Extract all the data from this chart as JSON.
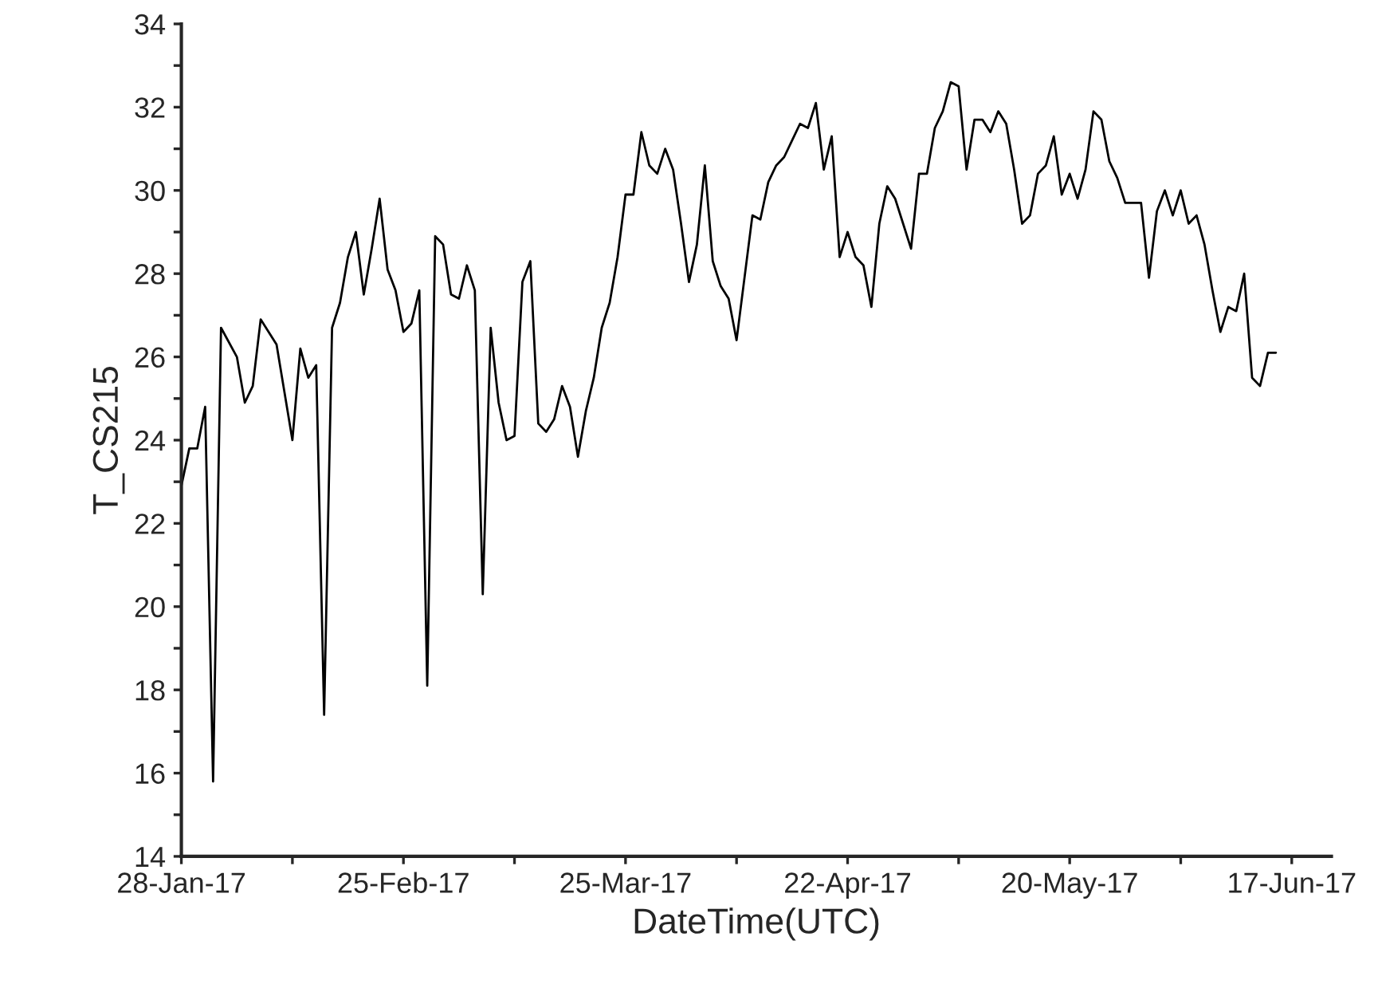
{
  "chart_data": {
    "type": "line",
    "xlabel": "DateTime(UTC)",
    "ylabel": "T_CS215",
    "x": [
      "2017-01-28",
      "2017-01-29",
      "2017-01-30",
      "2017-01-31",
      "2017-02-01",
      "2017-02-02",
      "2017-02-04",
      "2017-02-05",
      "2017-02-06",
      "2017-02-07",
      "2017-02-09",
      "2017-02-11",
      "2017-02-12",
      "2017-02-13",
      "2017-02-14",
      "2017-02-15",
      "2017-02-16",
      "2017-02-17",
      "2017-02-18",
      "2017-02-19",
      "2017-02-20",
      "2017-02-21",
      "2017-02-22",
      "2017-02-23",
      "2017-02-24",
      "2017-02-25",
      "2017-02-26",
      "2017-02-27",
      "2017-02-28",
      "2017-03-01",
      "2017-03-02",
      "2017-03-03",
      "2017-03-04",
      "2017-03-05",
      "2017-03-06",
      "2017-03-07",
      "2017-03-08",
      "2017-03-09",
      "2017-03-10",
      "2017-03-11",
      "2017-03-12",
      "2017-03-13",
      "2017-03-14",
      "2017-03-15",
      "2017-03-16",
      "2017-03-17",
      "2017-03-18",
      "2017-03-19",
      "2017-03-20",
      "2017-03-21",
      "2017-03-22",
      "2017-03-23",
      "2017-03-24",
      "2017-03-25",
      "2017-03-26",
      "2017-03-27",
      "2017-03-28",
      "2017-03-29",
      "2017-03-30",
      "2017-03-31",
      "2017-04-01",
      "2017-04-02",
      "2017-04-03",
      "2017-04-04",
      "2017-04-05",
      "2017-04-06",
      "2017-04-07",
      "2017-04-08",
      "2017-04-09",
      "2017-04-10",
      "2017-04-11",
      "2017-04-12",
      "2017-04-13",
      "2017-04-14",
      "2017-04-15",
      "2017-04-16",
      "2017-04-17",
      "2017-04-18",
      "2017-04-19",
      "2017-04-20",
      "2017-04-21",
      "2017-04-22",
      "2017-04-23",
      "2017-04-24",
      "2017-04-25",
      "2017-04-26",
      "2017-04-27",
      "2017-04-28",
      "2017-04-29",
      "2017-04-30",
      "2017-05-01",
      "2017-05-02",
      "2017-05-03",
      "2017-05-04",
      "2017-05-05",
      "2017-05-06",
      "2017-05-07",
      "2017-05-08",
      "2017-05-09",
      "2017-05-10",
      "2017-05-11",
      "2017-05-12",
      "2017-05-13",
      "2017-05-14",
      "2017-05-15",
      "2017-05-16",
      "2017-05-17",
      "2017-05-18",
      "2017-05-19",
      "2017-05-20",
      "2017-05-21",
      "2017-05-22",
      "2017-05-23",
      "2017-05-24",
      "2017-05-25",
      "2017-05-26",
      "2017-05-27",
      "2017-05-28",
      "2017-05-29",
      "2017-05-30",
      "2017-05-31",
      "2017-06-01",
      "2017-06-02",
      "2017-06-03",
      "2017-06-04",
      "2017-06-05",
      "2017-06-06",
      "2017-06-07",
      "2017-06-08",
      "2017-06-09",
      "2017-06-10",
      "2017-06-11",
      "2017-06-12",
      "2017-06-13",
      "2017-06-14",
      "2017-06-15"
    ],
    "series": [
      {
        "color": "#000000",
        "values": [
          22.9,
          23.8,
          23.8,
          24.8,
          15.8,
          26.7,
          26.0,
          24.9,
          25.3,
          26.9,
          26.3,
          24.0,
          26.2,
          25.5,
          25.8,
          17.4,
          26.7,
          27.3,
          28.4,
          29.0,
          27.5,
          28.6,
          29.8,
          28.1,
          27.6,
          26.6,
          26.8,
          27.6,
          18.1,
          28.9,
          28.7,
          27.5,
          27.4,
          28.2,
          27.6,
          20.3,
          26.7,
          24.9,
          24.0,
          24.1,
          27.8,
          28.3,
          24.4,
          24.2,
          24.5,
          25.3,
          24.8,
          23.6,
          24.7,
          25.5,
          26.7,
          27.3,
          28.4,
          29.9,
          29.9,
          31.4,
          30.6,
          30.4,
          31.0,
          30.5,
          29.2,
          27.8,
          28.7,
          30.6,
          28.3,
          27.7,
          27.4,
          26.4,
          27.9,
          29.4,
          29.3,
          30.2,
          30.6,
          30.8,
          31.2,
          31.6,
          31.5,
          32.1,
          30.5,
          31.3,
          28.4,
          29.0,
          28.4,
          28.2,
          27.2,
          29.2,
          30.1,
          29.8,
          29.2,
          28.6,
          30.4,
          30.4,
          31.5,
          31.9,
          32.6,
          32.5,
          30.5,
          31.7,
          31.7,
          31.4,
          31.9,
          31.6,
          30.5,
          29.2,
          29.4,
          30.4,
          30.6,
          31.3,
          29.9,
          30.4,
          29.8,
          30.5,
          31.9,
          31.7,
          30.7,
          30.3,
          29.7,
          29.7,
          29.7,
          27.9,
          29.5,
          30.0,
          29.4,
          30.0,
          29.2,
          29.4,
          28.7,
          27.6,
          26.6,
          27.2,
          27.1,
          28.0,
          25.5,
          25.3,
          26.1,
          26.1
        ]
      }
    ],
    "xlim": [
      "2017-01-28",
      "2017-06-22"
    ],
    "xticks": [
      {
        "value": "2017-01-28",
        "label": "28-Jan-17"
      },
      {
        "value": "2017-02-11",
        "label": null
      },
      {
        "value": "2017-02-25",
        "label": "25-Feb-17"
      },
      {
        "value": "2017-03-11",
        "label": null
      },
      {
        "value": "2017-03-25",
        "label": "25-Mar-17"
      },
      {
        "value": "2017-04-08",
        "label": null
      },
      {
        "value": "2017-04-22",
        "label": "22-Apr-17"
      },
      {
        "value": "2017-05-06",
        "label": null
      },
      {
        "value": "2017-05-20",
        "label": "20-May-17"
      },
      {
        "value": "2017-06-03",
        "label": null
      },
      {
        "value": "2017-06-17",
        "label": "17-Jun-17"
      }
    ],
    "ylim": [
      14,
      34
    ],
    "yticks": [
      14,
      {
        "value": 15,
        "label": null
      },
      16,
      {
        "value": 17,
        "label": null
      },
      18,
      {
        "value": 19,
        "label": null
      },
      20,
      {
        "value": 21,
        "label": null
      },
      22,
      {
        "value": 23,
        "label": null
      },
      24,
      {
        "value": 25,
        "label": null
      },
      26,
      {
        "value": 27,
        "label": null
      },
      28,
      {
        "value": 29,
        "label": null
      },
      30,
      {
        "value": 31,
        "label": null
      },
      32,
      {
        "value": 33,
        "label": null
      },
      34
    ],
    "grid": false,
    "legend": false,
    "marker": "none",
    "line_style": "solid"
  }
}
